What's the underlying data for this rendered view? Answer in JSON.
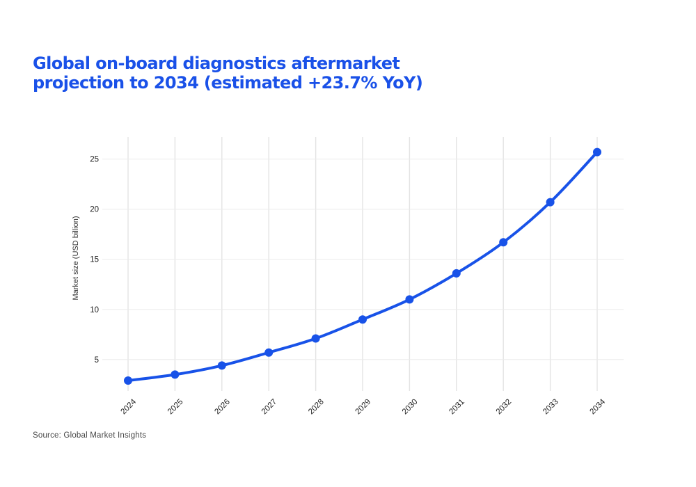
{
  "header": {
    "title_line1": "Global on-board diagnostics aftermarket",
    "title_line2": "projection to 2034 (estimated +23.7% YoY)"
  },
  "chart_data": {
    "type": "line",
    "title": "Global on-board diagnostics aftermarket projection to 2034 (estimated +23.7% YoY)",
    "series_name": "Market size (USD billion)",
    "x_categories": [
      "2024",
      "2025",
      "2026",
      "2027",
      "2028",
      "2029",
      "2030",
      "2031",
      "2032",
      "2033",
      "2034"
    ],
    "values": [
      2.9,
      3.5,
      4.4,
      5.7,
      7.1,
      9.0,
      11.0,
      13.6,
      16.7,
      20.7,
      25.7
    ],
    "xlabel": "",
    "ylabel": "Market size (USD billion)",
    "yticks": [
      5,
      10,
      15,
      20,
      25
    ],
    "ylim": [
      2.0,
      27.2
    ],
    "grid": true,
    "legend": "none",
    "yoy_growth_pct": 23.7,
    "line_color": "#1852e8",
    "marker_style": "circle"
  },
  "footer": {
    "source": "Source: Global Market Insights"
  },
  "colors": {
    "title_blue": "#1a51e8",
    "line_blue": "#1852e8",
    "gridline_horizontal": "#ebebeb",
    "gridline_vertical": "#e3e3e3",
    "axis_text": "#1c1c1c",
    "axis_title_text": "#333333",
    "source_text": "#474747",
    "background": "#ffffff"
  }
}
